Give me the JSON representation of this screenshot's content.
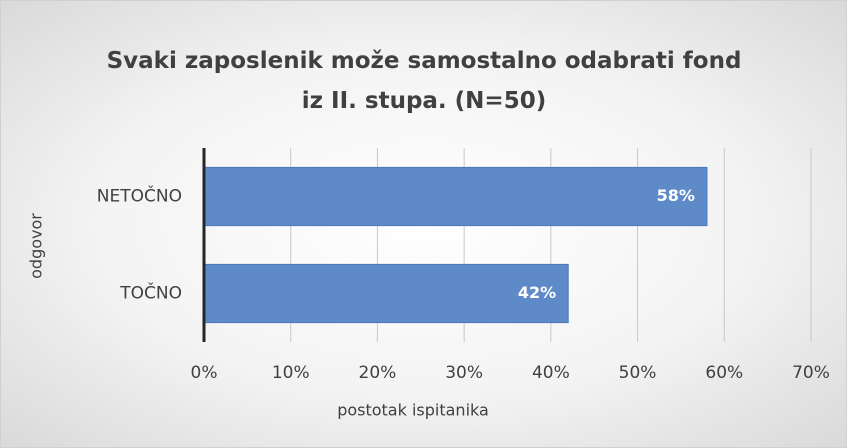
{
  "chart_data": {
    "type": "hbar",
    "title": "Svaki zaposlenik može samostalno odabrati fond iz II. stupa. (N=50)",
    "xlabel": "postotak ispitanika",
    "ylabel": "odgovor",
    "categories": [
      "NETOČNO",
      "TOČNO"
    ],
    "values": [
      58,
      42
    ],
    "value_labels": [
      "58%",
      "42%"
    ],
    "color": "#5e8ac7",
    "xlim": [
      0,
      70
    ],
    "xticks": [
      {
        "value": 0,
        "label": "0%"
      },
      {
        "value": 10,
        "label": "10%"
      },
      {
        "value": 20,
        "label": "20%"
      },
      {
        "value": 30,
        "label": "30%"
      },
      {
        "value": 40,
        "label": "40%"
      },
      {
        "value": 50,
        "label": "50%"
      },
      {
        "value": 60,
        "label": "60%"
      },
      {
        "value": 70,
        "label": "70%"
      }
    ],
    "grid": true
  }
}
